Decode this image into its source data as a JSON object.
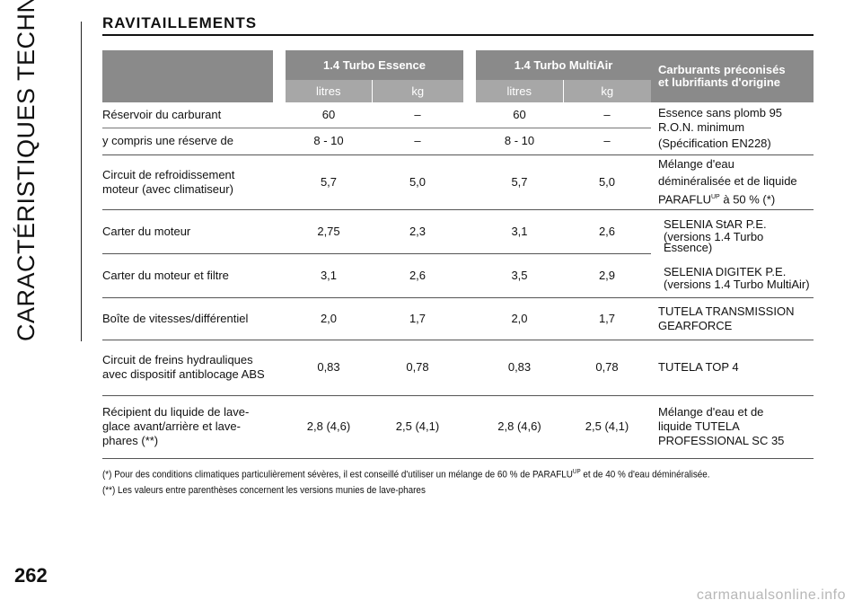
{
  "side_title": "CARACTÉRISTIQUES TECHNIQUES",
  "page_number": "262",
  "watermark": "carmanualsonline.info",
  "title": "RAVITAILLEMENTS",
  "header": {
    "engine1": "1.4 Turbo Essence",
    "engine2": "1.4 Turbo MultiAir",
    "unit_litres": "litres",
    "unit_kg": "kg",
    "right_line1": "Carburants préconisés",
    "right_line2": "et lubrifiants d'origine"
  },
  "rows": [
    {
      "label": "Réservoir du carburant",
      "v1": "60",
      "v2": "–",
      "v3": "60",
      "v4": "–"
    },
    {
      "label": "y compris une réserve de",
      "v1": "8 - 10",
      "v2": "–",
      "v3": "8 - 10",
      "v4": "–"
    },
    {
      "label": "Circuit de refroidissement moteur (avec climatiseur)",
      "v1": "5,7",
      "v2": "5,0",
      "v3": "5,7",
      "v4": "5,0"
    },
    {
      "label": "Carter du moteur",
      "v1": "2,75",
      "v2": "2,3",
      "v3": "3,1",
      "v4": "2,6"
    },
    {
      "label": "Carter du moteur et filtre",
      "v1": "3,1",
      "v2": "2,6",
      "v3": "3,5",
      "v4": "2,9"
    },
    {
      "label": "Boîte de vitesses/différentiel",
      "v1": "2,0",
      "v2": "1,7",
      "v3": "2,0",
      "v4": "1,7"
    },
    {
      "label": "Circuit de freins hydrauliques avec dispositif antiblocage ABS",
      "v1": "0,83",
      "v2": "0,78",
      "v3": "0,83",
      "v4": "0,78"
    },
    {
      "label": "Récipient du liquide de lave-glace avant/arrière et lave-phares (**)",
      "v1": "2,8 (4,6)",
      "v2": "2,5 (4,1)",
      "v3": "2,8 (4,6)",
      "v4": "2,5 (4,1)"
    }
  ],
  "right_notes": {
    "fuel_l1": "Essence sans plomb 95",
    "fuel_l2": "R.O.N. minimum",
    "fuel_l3": "(Spécification EN228)",
    "coolant_l1": "Mélange d'eau",
    "coolant_l2": "déminéralisée et de liquide",
    "coolant_brand": "PARAFLU",
    "coolant_sup": "UP",
    "coolant_tail": " à 50 % (*)",
    "oil_a1": "SELENIA StAR P.E.",
    "oil_a2": "(versions 1.4 Turbo Essence)",
    "oil_b1": "SELENIA DIGITEK P.E.",
    "oil_b2": "(versions 1.4 Turbo MultiAir)",
    "gear_l1": "TUTELA TRANSMISSION",
    "gear_l2": "GEARFORCE",
    "brake": "TUTELA TOP 4",
    "washer_l1": "Mélange d'eau et de",
    "washer_l2": "liquide TUTELA",
    "washer_l3": "PROFESSIONAL SC 35"
  },
  "footnotes": {
    "note1_a": "(*) Pour des conditions climatiques particulièrement sévères, il est conseillé d'utiliser un mélange de 60 % de PARAFLU",
    "note1_sup": "UP",
    "note1_b": " et de 40 % d'eau déminéralisée.",
    "note2": "(**) Les valeurs entre parenthèses concernent les versions munies de lave-phares"
  }
}
